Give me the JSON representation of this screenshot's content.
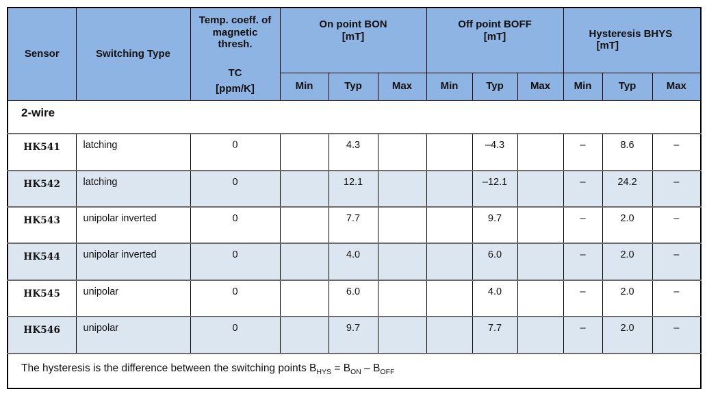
{
  "colors": {
    "header_bg": "#8db4e2",
    "alt_row_bg": "#dce6f1",
    "border": "#000000",
    "row_separator": "#6b6b6b"
  },
  "header": {
    "sensor": "Sensor",
    "switching_type": "Switching Type",
    "tc": {
      "line1": "Temp. coeff. of",
      "line2": "magnetic",
      "line3": "thresh.",
      "symbol": "TC",
      "unit": "[ppm/K]"
    },
    "groups": [
      {
        "title": "On point BON",
        "unit": "[mT]"
      },
      {
        "title": "Off point BOFF",
        "unit": "[mT]"
      },
      {
        "title": "Hysteresis BHYS",
        "unit": "[mT]"
      }
    ],
    "subcols": [
      "Min",
      "Typ",
      "Max"
    ]
  },
  "section": {
    "label": "2-wire"
  },
  "rows": [
    {
      "sensor": "HK541",
      "type": "latching",
      "tc": "0",
      "on": [
        "",
        "4.3",
        ""
      ],
      "off": [
        "",
        "–4.3",
        ""
      ],
      "hys": [
        "–",
        "8.6",
        "–"
      ]
    },
    {
      "sensor": "HK542",
      "type": "latching",
      "tc": "0",
      "on": [
        "",
        "12.1",
        ""
      ],
      "off": [
        "",
        "–12.1",
        ""
      ],
      "hys": [
        "–",
        "24.2",
        "–"
      ]
    },
    {
      "sensor": "HK543",
      "type": "unipolar inverted",
      "tc": "0",
      "on": [
        "",
        "7.7",
        ""
      ],
      "off": [
        "",
        "9.7",
        ""
      ],
      "hys": [
        "–",
        "2.0",
        "–"
      ]
    },
    {
      "sensor": "HK544",
      "type": "unipolar inverted",
      "tc": "0",
      "on": [
        "",
        "4.0",
        ""
      ],
      "off": [
        "",
        "6.0",
        ""
      ],
      "hys": [
        "–",
        "2.0",
        "–"
      ]
    },
    {
      "sensor": "HK545",
      "type": "unipolar",
      "tc": "0",
      "on": [
        "",
        "6.0",
        ""
      ],
      "off": [
        "",
        "4.0",
        ""
      ],
      "hys": [
        "–",
        "2.0",
        "–"
      ]
    },
    {
      "sensor": "HK546",
      "type": "unipolar",
      "tc": "0",
      "on": [
        "",
        "9.7",
        ""
      ],
      "off": [
        "",
        "7.7",
        ""
      ],
      "hys": [
        "–",
        "2.0",
        "–"
      ]
    }
  ],
  "footnote": {
    "text_1": "The hysteresis is the difference between the switching points B",
    "sub_1": "HYS",
    "text_2": " = B",
    "sub_2": "ON",
    "text_3": " – B",
    "sub_3": "OFF"
  }
}
